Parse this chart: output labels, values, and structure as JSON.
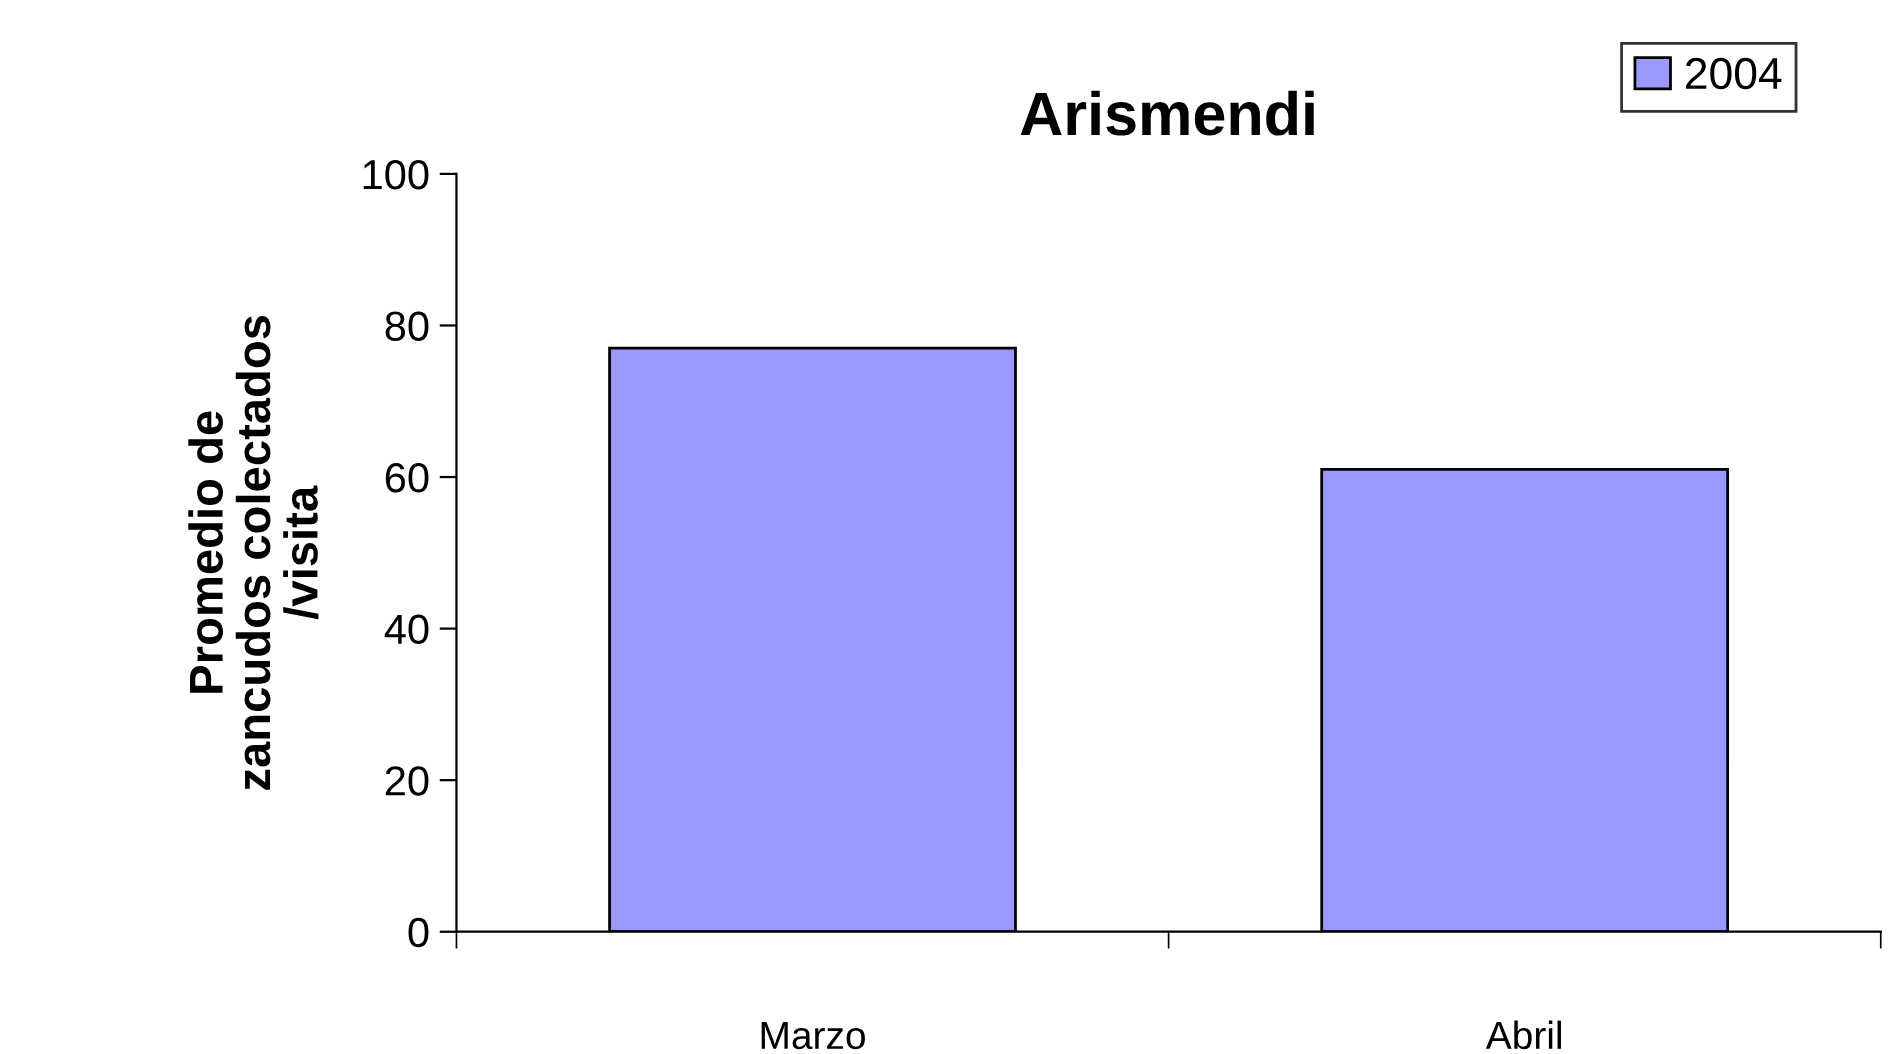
{
  "chart_data": {
    "type": "bar",
    "title": "Arismendi",
    "ylabel": "Promedio de\nzancudos colectados\n/visita",
    "categories": [
      "Marzo",
      "Abril"
    ],
    "series": [
      {
        "name": "2004",
        "color": "#9999ff",
        "values": [
          77,
          61
        ]
      }
    ],
    "ylim": [
      0,
      100
    ],
    "yticks": [
      0,
      20,
      40,
      60,
      80,
      100
    ],
    "grid": false,
    "legend": "top right"
  }
}
